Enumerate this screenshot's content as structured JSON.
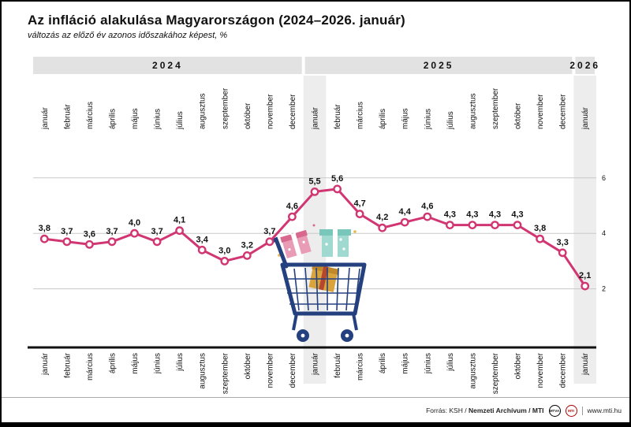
{
  "header": {
    "title": "Az infláció alakulása Magyarországon (2024–2026. január)",
    "subtitle": "változás az előző év azonos időszakához képest, %"
  },
  "chart_data": {
    "type": "line",
    "title": "Az infláció alakulása Magyarországon (2024–2026. január)",
    "ylabel": "%",
    "ylim": [
      0,
      7
    ],
    "y_ticks": [
      2,
      4,
      6
    ],
    "grid": true,
    "legend": "none",
    "line_color": "#d13672",
    "years": [
      {
        "label": "2024",
        "span": 12
      },
      {
        "label": "2025",
        "span": 12
      },
      {
        "label": "2026",
        "span": 1
      }
    ],
    "months": [
      "január",
      "február",
      "március",
      "április",
      "május",
      "június",
      "július",
      "augusztus",
      "szeptember",
      "október",
      "november",
      "december",
      "január",
      "február",
      "március",
      "április",
      "május",
      "június",
      "július",
      "augusztus",
      "szeptember",
      "október",
      "november",
      "december",
      "január"
    ],
    "values": [
      3.8,
      3.7,
      3.6,
      3.7,
      4.0,
      3.7,
      4.1,
      3.4,
      3.0,
      3.2,
      3.7,
      4.6,
      5.5,
      5.6,
      4.7,
      4.2,
      4.4,
      4.6,
      4.3,
      4.3,
      4.3,
      4.3,
      3.8,
      3.3,
      2.1
    ],
    "value_labels": [
      "3,8",
      "3,7",
      "3,6",
      "3,7",
      "4,0",
      "3,7",
      "4,1",
      "3,4",
      "3,0",
      "3,2",
      "3,7",
      "4,6",
      "5,5",
      "5,6",
      "4,7",
      "4,2",
      "4,4",
      "4,6",
      "4,3",
      "4,3",
      "4,3",
      "4,3",
      "3,8",
      "3,3",
      "2,1"
    ],
    "highlight_columns": [
      12,
      24
    ]
  },
  "footer": {
    "source_prefix": "Forrás: KSH / ",
    "source_bold": "Nemzeti Archívum / MTI",
    "logos": [
      "MTVA",
      "MTI"
    ],
    "url": "www.mti.hu"
  }
}
